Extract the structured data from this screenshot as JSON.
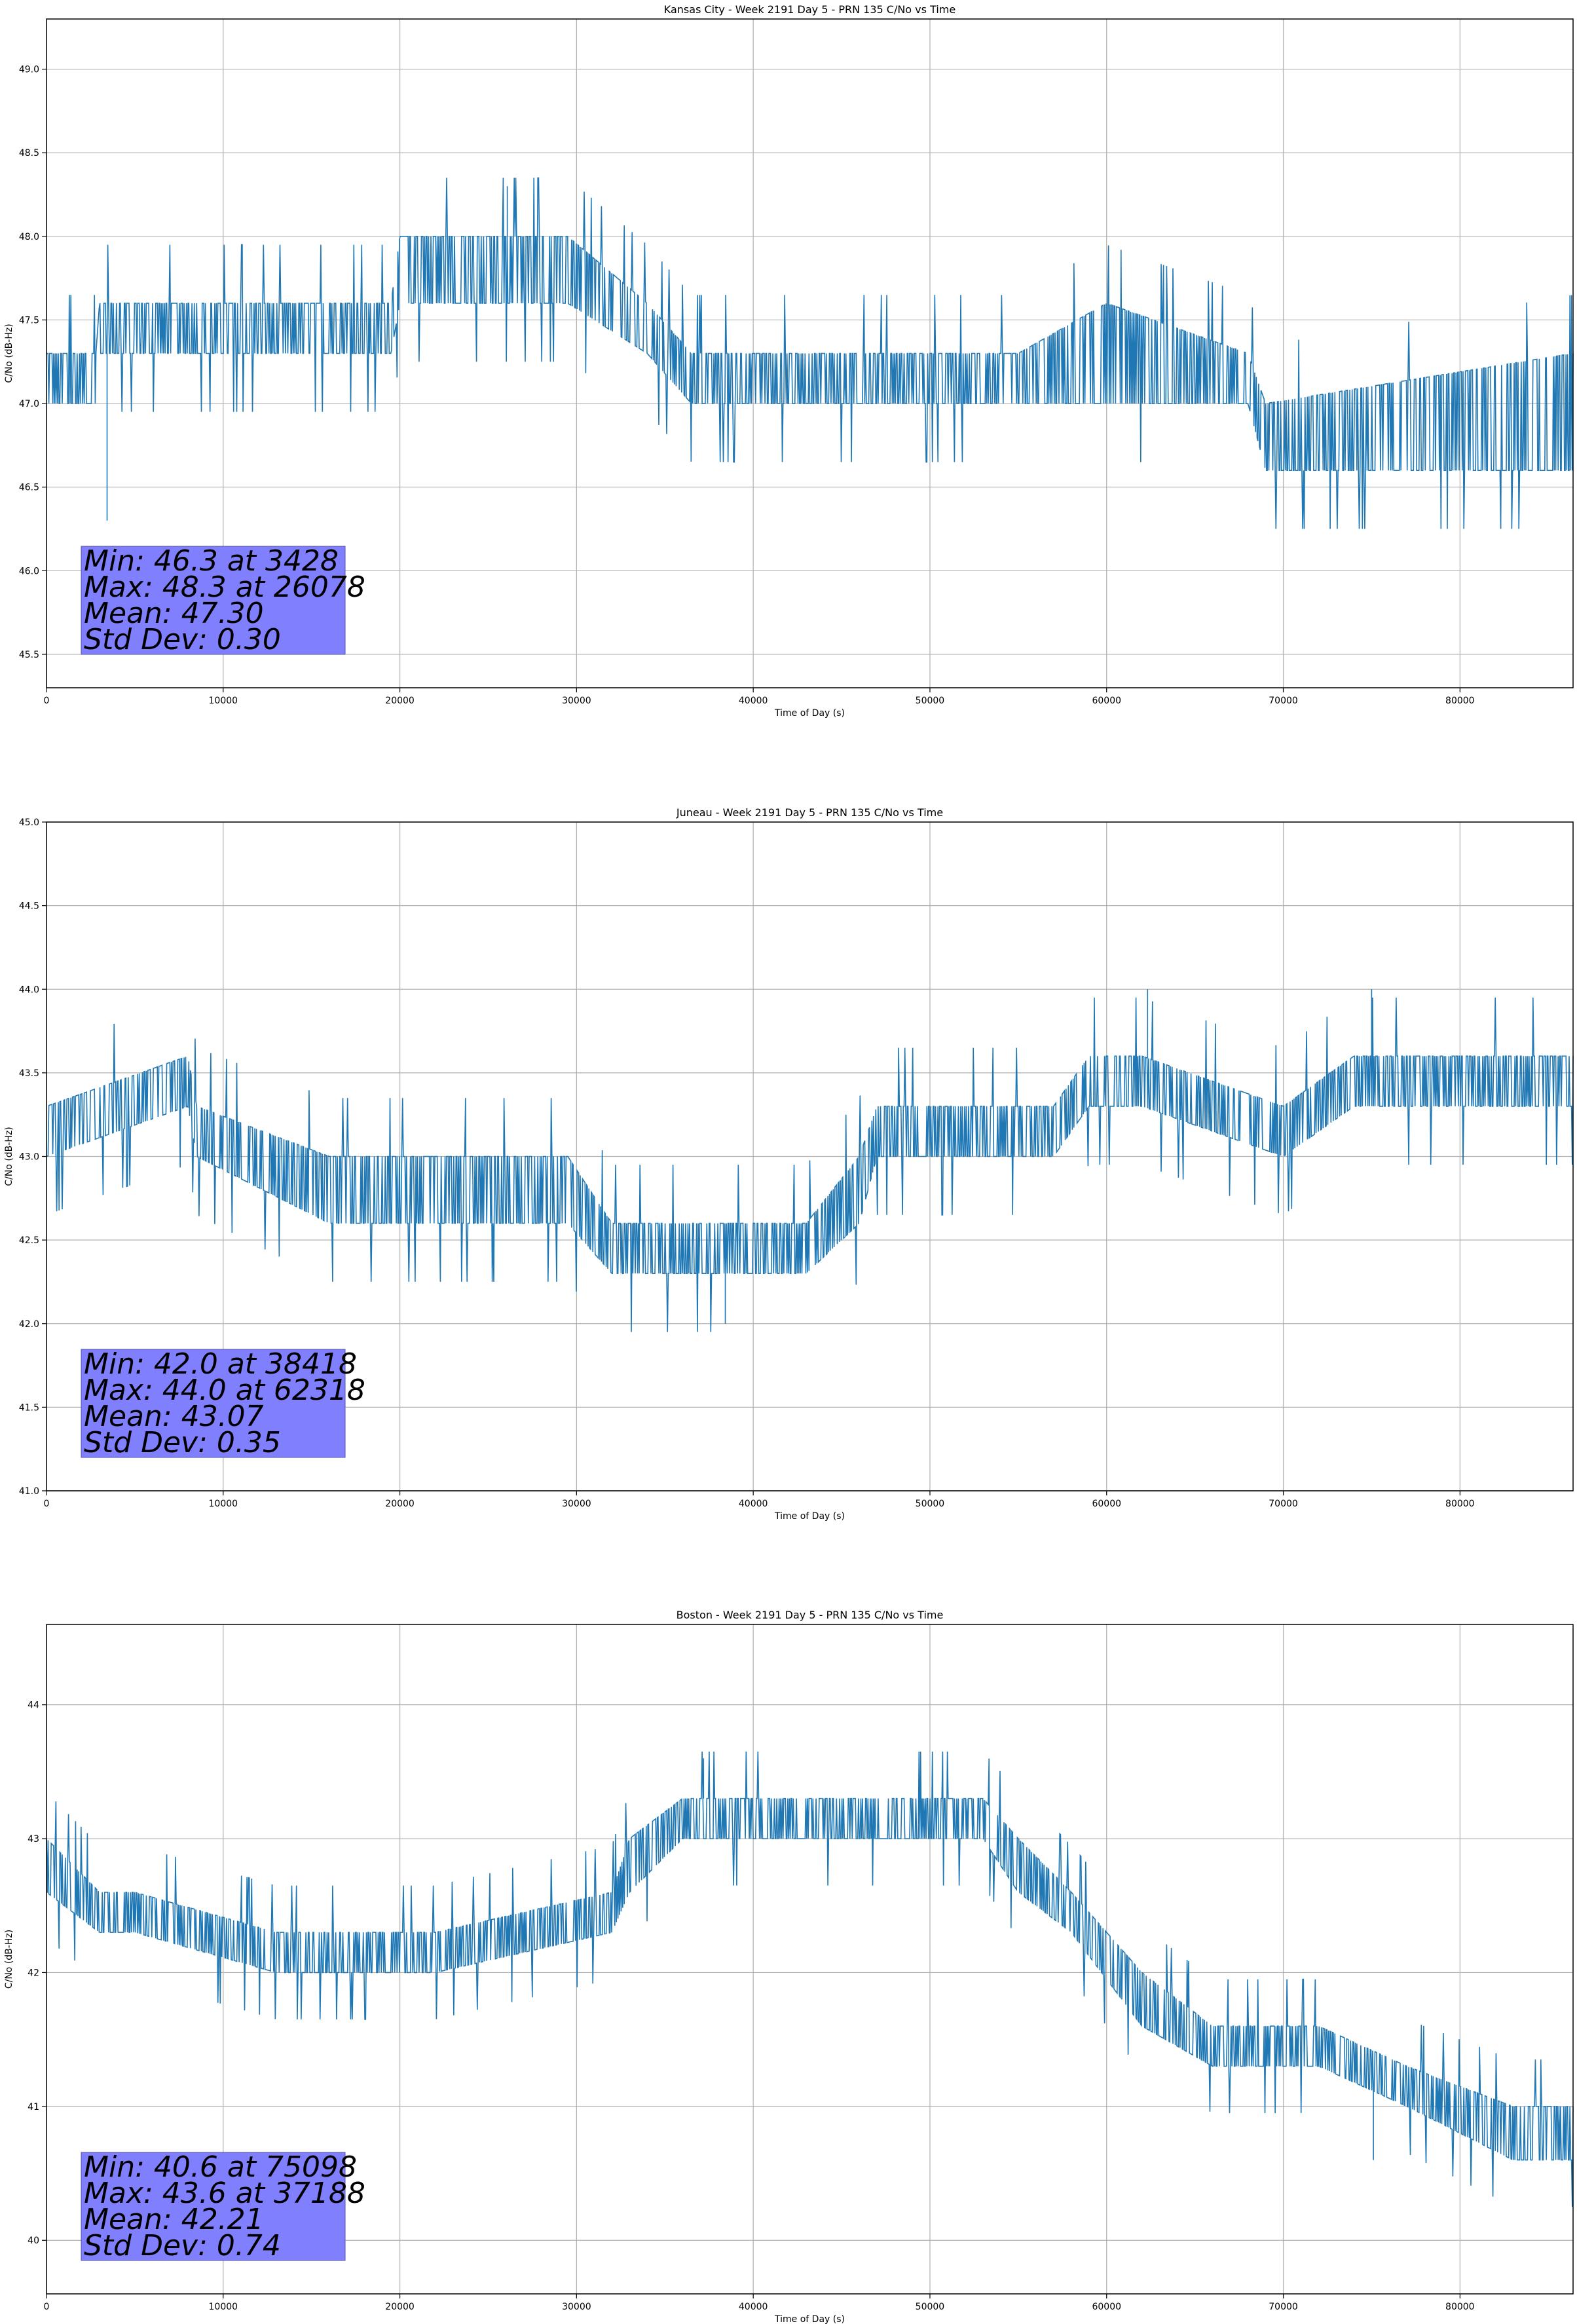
{
  "chart_data": [
    {
      "type": "line",
      "title": "Kansas City - Week 2191 Day 5 - PRN 135 C/No vs Time",
      "xlabel": "Time of Day (s)",
      "ylabel": "C/No (dB-Hz)",
      "xlim": [
        0,
        86400
      ],
      "ylim": [
        45.3,
        49.3
      ],
      "xticks": [
        0,
        10000,
        20000,
        30000,
        40000,
        50000,
        60000,
        70000,
        80000
      ],
      "yticks": [
        45.5,
        46.0,
        46.5,
        47.0,
        47.5,
        48.0,
        48.5,
        49.0
      ],
      "ytick_labels": [
        "45.5",
        "46.0",
        "46.5",
        "47.0",
        "47.5",
        "48.0",
        "48.5",
        "49.0"
      ],
      "grid": true,
      "line_color": "#1f77b4",
      "band_trend": {
        "x": [
          0,
          2800,
          3000,
          19500,
          20000,
          29500,
          34000,
          36500,
          55000,
          60000,
          68000,
          69000,
          86400
        ],
        "low": [
          47.0,
          47.0,
          47.3,
          47.3,
          47.6,
          47.6,
          47.3,
          47.0,
          47.0,
          47.0,
          47.0,
          46.6,
          46.6
        ],
        "high": [
          47.3,
          47.3,
          47.6,
          47.6,
          48.0,
          48.0,
          47.6,
          47.3,
          47.3,
          47.6,
          47.3,
          47.0,
          47.3
        ]
      },
      "extremes": [
        {
          "x": 3428,
          "y": 46.3
        },
        {
          "x": 26078,
          "y": 48.3
        }
      ],
      "stats": {
        "min": "Min: 46.3 at 3428",
        "max": "Max: 48.3 at 26078",
        "mean": "Mean: 47.30",
        "std": "Std Dev: 0.30"
      },
      "stats_box_color": "#8080ff"
    },
    {
      "type": "line",
      "title": "Juneau - Week 2191 Day 5 - PRN 135 C/No vs Time",
      "xlabel": "Time of Day (s)",
      "ylabel": "C/No (dB-Hz)",
      "xlim": [
        0,
        86400
      ],
      "ylim": [
        41.0,
        45.0
      ],
      "xticks": [
        0,
        10000,
        20000,
        30000,
        40000,
        50000,
        60000,
        70000,
        80000
      ],
      "yticks": [
        41.0,
        41.5,
        42.0,
        42.5,
        43.0,
        43.5,
        44.0,
        44.5,
        45.0
      ],
      "ytick_labels": [
        "41.0",
        "41.5",
        "42.0",
        "42.5",
        "43.0",
        "43.5",
        "44.0",
        "44.5",
        "45.0"
      ],
      "grid": true,
      "line_color": "#1f77b4",
      "band_trend": {
        "x": [
          0,
          8000,
          8500,
          16000,
          29500,
          32000,
          43000,
          46000,
          47000,
          57000,
          59000,
          62000,
          70000,
          74000,
          86400
        ],
        "low": [
          43.0,
          43.3,
          43.0,
          42.6,
          42.6,
          42.3,
          42.3,
          42.6,
          43.0,
          43.0,
          43.3,
          43.3,
          43.0,
          43.3,
          43.3
        ],
        "high": [
          43.3,
          43.6,
          43.3,
          43.0,
          43.0,
          42.6,
          42.6,
          43.0,
          43.3,
          43.3,
          43.6,
          43.6,
          43.3,
          43.6,
          43.6
        ]
      },
      "extremes": [
        {
          "x": 38418,
          "y": 42.0
        },
        {
          "x": 62318,
          "y": 44.0
        },
        {
          "x": 75000,
          "y": 44.0
        }
      ],
      "stats": {
        "min": "Min: 42.0 at 38418",
        "max": "Max: 44.0 at 62318",
        "mean": "Mean: 43.07",
        "std": "Std Dev: 0.35"
      },
      "stats_box_color": "#8080ff"
    },
    {
      "type": "line",
      "title": "Boston - Week 2191 Day 5 - PRN 135 C/No vs Time",
      "xlabel": "Time of Day (s)",
      "ylabel": "C/No (dB-Hz)",
      "xlim": [
        0,
        86400
      ],
      "ylim": [
        39.6,
        44.6
      ],
      "xticks": [
        0,
        10000,
        20000,
        30000,
        40000,
        50000,
        60000,
        70000,
        80000
      ],
      "yticks": [
        40,
        41,
        42,
        43,
        44
      ],
      "ytick_labels": [
        "40",
        "41",
        "42",
        "43",
        "44"
      ],
      "grid": true,
      "line_color": "#1f77b4",
      "band_trend": {
        "x": [
          0,
          3000,
          5000,
          13000,
          22000,
          32000,
          33000,
          36000,
          53000,
          55000,
          58000,
          62000,
          66000,
          72000,
          77000,
          83000,
          86400
        ],
        "low": [
          42.6,
          42.3,
          42.3,
          42.0,
          42.0,
          42.3,
          42.6,
          43.0,
          43.0,
          42.6,
          42.3,
          41.6,
          41.3,
          41.3,
          41.0,
          40.6,
          40.6
        ],
        "high": [
          43.0,
          42.6,
          42.6,
          42.3,
          42.3,
          42.6,
          43.0,
          43.3,
          43.3,
          43.0,
          42.6,
          42.0,
          41.6,
          41.6,
          41.3,
          41.0,
          41.0
        ]
      },
      "extremes": [
        {
          "x": 75098,
          "y": 40.6
        },
        {
          "x": 37188,
          "y": 43.6
        }
      ],
      "stats": {
        "min": "Min: 40.6 at 75098",
        "max": "Max: 43.6 at 37188",
        "mean": "Mean: 42.21",
        "std": "Std Dev: 0.74"
      },
      "stats_box_color": "#8080ff"
    }
  ]
}
